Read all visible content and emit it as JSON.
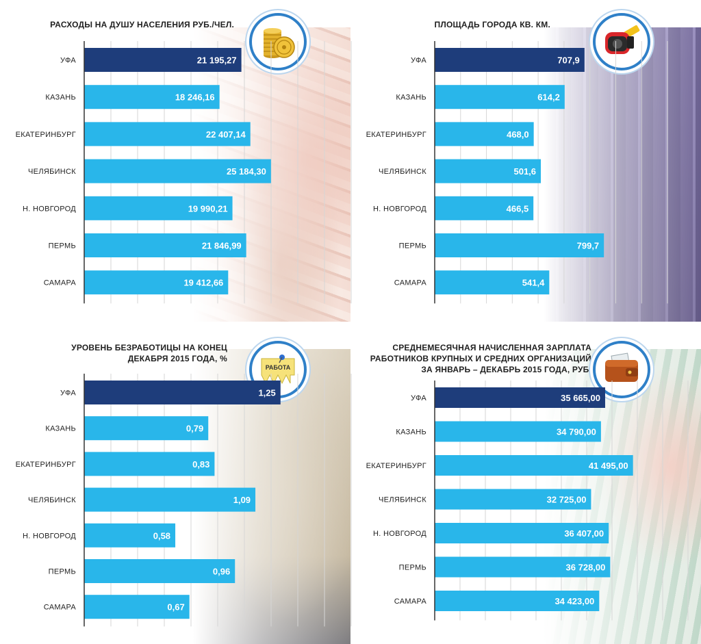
{
  "chart_data": [
    {
      "type": "bar",
      "orientation": "horizontal",
      "title": [
        "РАСХОДЫ НА ДУШУ НАСЕЛЕНИЯ РУБ./ЧЕЛ."
      ],
      "categories": [
        "УФА",
        "КАЗАНЬ",
        "ЕКАТЕРИНБУРГ",
        "ЧЕЛЯБИНСК",
        "Н. НОВГОРОД",
        "ПЕРМЬ",
        "САМАРА"
      ],
      "values": [
        21195.27,
        18246.16,
        22407.14,
        25184.3,
        19990.21,
        21846.99,
        19412.66
      ],
      "labels": [
        "21 195,27",
        "18 246,16",
        "22 407,14",
        "25 184,30",
        "19 990,21",
        "21 846,99",
        "19 412,66"
      ],
      "xlim": [
        0,
        36000
      ],
      "highlight_index": 0,
      "icon": "coins-icon"
    },
    {
      "type": "bar",
      "orientation": "horizontal",
      "title": [
        "ПЛОЩАДЬ ГОРОДА КВ. КМ."
      ],
      "categories": [
        "УФА",
        "КАЗАНЬ",
        "ЕКАТЕРИНБУРГ",
        "ЧЕЛЯБИНСК",
        "Н. НОВГОРОД",
        "ПЕРМЬ",
        "САМАРА"
      ],
      "values": [
        707.9,
        614.2,
        468.0,
        501.6,
        466.5,
        799.7,
        541.4
      ],
      "labels": [
        "707,9",
        "614,2",
        "468,0",
        "501,6",
        "466,5",
        "799,7",
        "541,4"
      ],
      "xlim": [
        0,
        1100
      ],
      "highlight_index": 0,
      "icon": "tape-measure-icon"
    },
    {
      "type": "bar",
      "orientation": "horizontal",
      "title": [
        "УРОВЕНЬ БЕЗРАБОТИЦЫ НА КОНЕЦ",
        "ДЕКАБРЯ 2015 ГОДА, %"
      ],
      "categories": [
        "УФА",
        "КАЗАНЬ",
        "ЕКАТЕРИНБУРГ",
        "ЧЕЛЯБИНСК",
        "Н. НОВГОРОД",
        "ПЕРМЬ",
        "САМАРА"
      ],
      "values": [
        1.25,
        0.79,
        0.83,
        1.09,
        0.58,
        0.96,
        0.67
      ],
      "labels": [
        "1,25",
        "0,79",
        "0,83",
        "1,09",
        "0,58",
        "0,96",
        "0,67"
      ],
      "xlim": [
        0,
        1.7
      ],
      "highlight_index": 0,
      "icon": "job-notice-icon",
      "icon_text": "РАБОТА"
    },
    {
      "type": "bar",
      "orientation": "horizontal",
      "title": [
        "СРЕДНЕМЕСЯЧНАЯ НАЧИСЛЕННАЯ ЗАРПЛАТА",
        "РАБОТНИКОВ КРУПНЫХ И СРЕДНИХ ОРГАНИЗАЦИЙ",
        "ЗА ЯНВАРЬ – ДЕКАБРЬ 2015 ГОДА, РУБ."
      ],
      "categories": [
        "УФА",
        "КАЗАНЬ",
        "ЕКАТЕРИНБУРГ",
        "ЧЕЛЯБИНСК",
        "Н. НОВГОРОД",
        "ПЕРМЬ",
        "САМАРА"
      ],
      "values": [
        35665.0,
        34790.0,
        41495.0,
        32725.0,
        36407.0,
        36728.0,
        34423.0
      ],
      "labels": [
        "35 665,00",
        "34 790,00",
        "41 495,00",
        "32 725,00",
        "36 407,00",
        "36 728,00",
        "34 423,00"
      ],
      "xlim": [
        0,
        53000
      ],
      "highlight_index": 0,
      "icon": "wallet-icon"
    }
  ],
  "colors": {
    "bar": "#29b6ea",
    "bar_highlight": "#1e3d7b",
    "axis": "#333333",
    "grid": "#d6d6d6",
    "ring": "#2f80c8"
  }
}
